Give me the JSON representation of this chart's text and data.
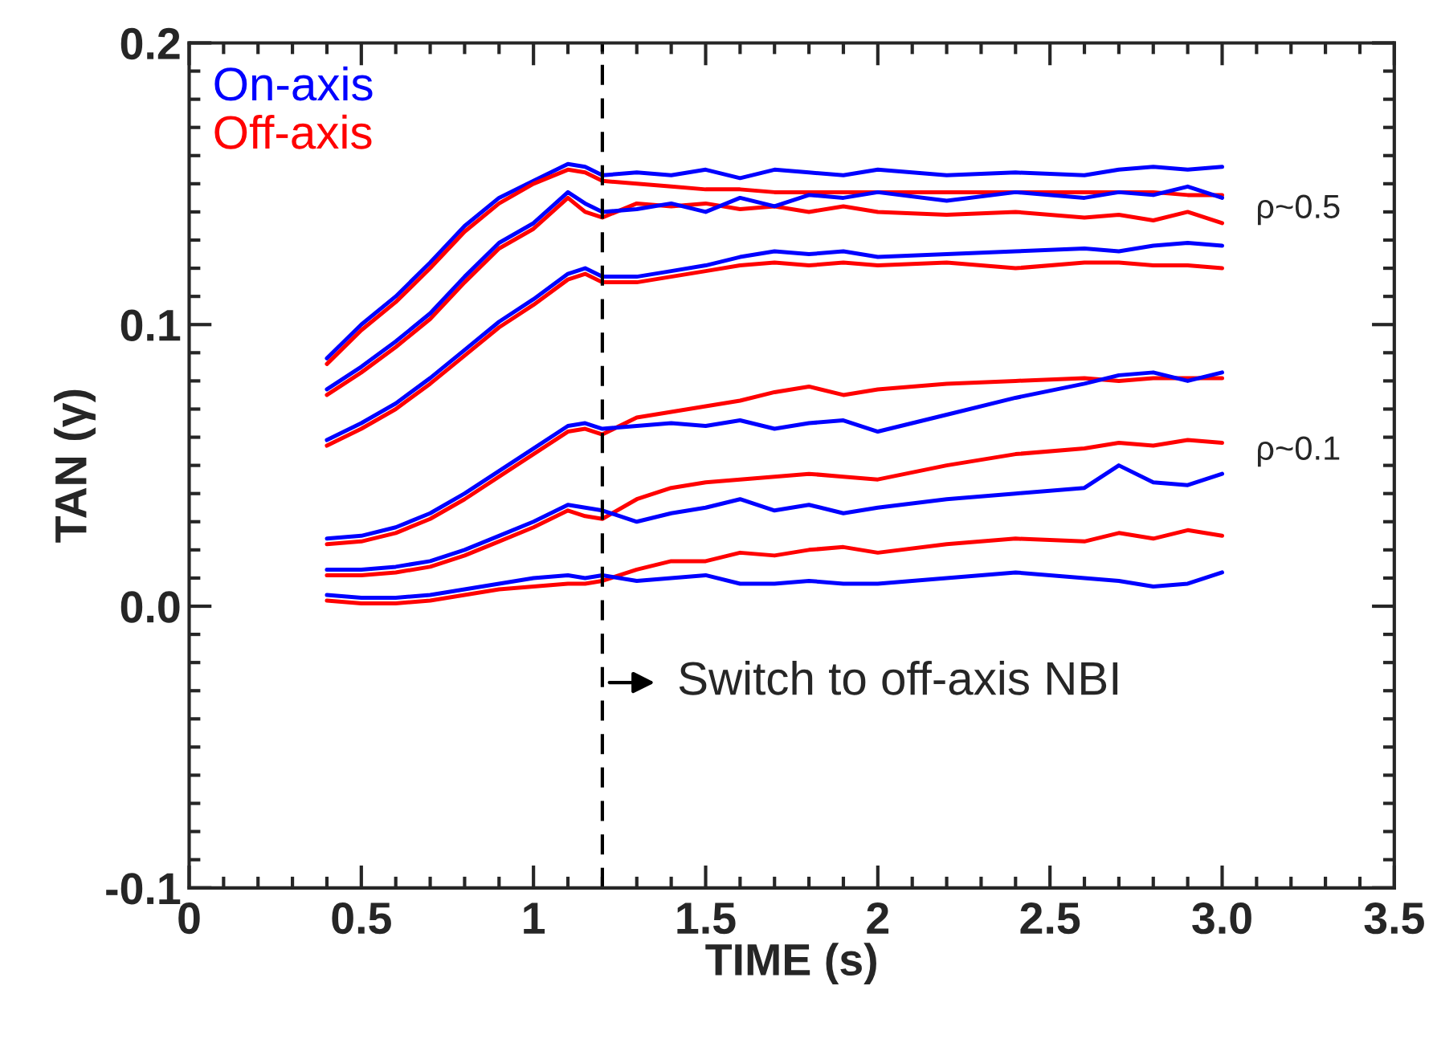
{
  "chart_data": {
    "type": "line",
    "xlabel": "TIME (s)",
    "ylabel": "TAN (γ)",
    "x": [
      0.4,
      0.5,
      0.6,
      0.7,
      0.8,
      0.9,
      1.0,
      1.1,
      1.15,
      1.2,
      1.3,
      1.4,
      1.5,
      1.6,
      1.7,
      1.8,
      1.9,
      2.0,
      2.2,
      2.4,
      2.6,
      2.7,
      2.8,
      2.9,
      3.0
    ],
    "series": [
      {
        "name": "On-axis",
        "color": "#0000ff",
        "values": [
          0.088,
          0.1,
          0.11,
          0.122,
          0.135,
          0.145,
          0.151,
          0.157,
          0.156,
          0.153,
          0.154,
          0.153,
          0.155,
          0.152,
          0.155,
          0.154,
          0.153,
          0.155,
          0.153,
          0.154,
          0.153,
          0.155,
          0.156,
          0.155,
          0.156
        ]
      },
      {
        "name": "Off-axis",
        "color": "#ff0000",
        "values": [
          0.086,
          0.098,
          0.108,
          0.12,
          0.133,
          0.143,
          0.15,
          0.155,
          0.154,
          0.151,
          0.15,
          0.149,
          0.148,
          0.148,
          0.147,
          0.147,
          0.147,
          0.147,
          0.147,
          0.147,
          0.147,
          0.147,
          0.147,
          0.146,
          0.146
        ]
      },
      {
        "color": "#ff0000",
        "values": [
          0.075,
          0.083,
          0.092,
          0.102,
          0.115,
          0.127,
          0.134,
          0.145,
          0.14,
          0.138,
          0.143,
          0.142,
          0.143,
          0.141,
          0.142,
          0.14,
          0.142,
          0.14,
          0.139,
          0.14,
          0.138,
          0.139,
          0.137,
          0.14,
          0.136
        ]
      },
      {
        "color": "#0000ff",
        "values": [
          0.077,
          0.085,
          0.094,
          0.104,
          0.117,
          0.129,
          0.136,
          0.147,
          0.143,
          0.14,
          0.141,
          0.143,
          0.14,
          0.145,
          0.142,
          0.146,
          0.145,
          0.147,
          0.144,
          0.147,
          0.145,
          0.147,
          0.146,
          0.149,
          0.145
        ]
      },
      {
        "color": "#ff0000",
        "values": [
          0.057,
          0.063,
          0.07,
          0.079,
          0.089,
          0.099,
          0.107,
          0.116,
          0.118,
          0.115,
          0.115,
          0.117,
          0.119,
          0.121,
          0.122,
          0.121,
          0.122,
          0.121,
          0.122,
          0.12,
          0.122,
          0.122,
          0.121,
          0.121,
          0.12
        ]
      },
      {
        "color": "#0000ff",
        "values": [
          0.059,
          0.065,
          0.072,
          0.081,
          0.091,
          0.101,
          0.109,
          0.118,
          0.12,
          0.117,
          0.117,
          0.119,
          0.121,
          0.124,
          0.126,
          0.125,
          0.126,
          0.124,
          0.125,
          0.126,
          0.127,
          0.126,
          0.128,
          0.129,
          0.128
        ]
      },
      {
        "color": "#ff0000",
        "values": [
          0.022,
          0.023,
          0.026,
          0.031,
          0.038,
          0.046,
          0.054,
          0.062,
          0.063,
          0.061,
          0.067,
          0.069,
          0.071,
          0.073,
          0.076,
          0.078,
          0.075,
          0.077,
          0.079,
          0.08,
          0.081,
          0.08,
          0.081,
          0.081,
          0.081
        ]
      },
      {
        "color": "#0000ff",
        "values": [
          0.024,
          0.025,
          0.028,
          0.033,
          0.04,
          0.048,
          0.056,
          0.064,
          0.065,
          0.063,
          0.064,
          0.065,
          0.064,
          0.066,
          0.063,
          0.065,
          0.066,
          0.062,
          0.068,
          0.074,
          0.079,
          0.082,
          0.083,
          0.08,
          0.083
        ]
      },
      {
        "color": "#ff0000",
        "values": [
          0.011,
          0.011,
          0.012,
          0.014,
          0.018,
          0.023,
          0.028,
          0.034,
          0.032,
          0.031,
          0.038,
          0.042,
          0.044,
          0.045,
          0.046,
          0.047,
          0.046,
          0.045,
          0.05,
          0.054,
          0.056,
          0.058,
          0.057,
          0.059,
          0.058
        ]
      },
      {
        "color": "#0000ff",
        "values": [
          0.013,
          0.013,
          0.014,
          0.016,
          0.02,
          0.025,
          0.03,
          0.036,
          0.035,
          0.034,
          0.03,
          0.033,
          0.035,
          0.038,
          0.034,
          0.036,
          0.033,
          0.035,
          0.038,
          0.04,
          0.042,
          0.05,
          0.044,
          0.043,
          0.047
        ]
      },
      {
        "color": "#ff0000",
        "values": [
          0.002,
          0.001,
          0.001,
          0.002,
          0.004,
          0.006,
          0.007,
          0.008,
          0.008,
          0.009,
          0.013,
          0.016,
          0.016,
          0.019,
          0.018,
          0.02,
          0.021,
          0.019,
          0.022,
          0.024,
          0.023,
          0.026,
          0.024,
          0.027,
          0.025
        ]
      },
      {
        "color": "#0000ff",
        "values": [
          0.004,
          0.003,
          0.003,
          0.004,
          0.006,
          0.008,
          0.01,
          0.011,
          0.01,
          0.011,
          0.009,
          0.01,
          0.011,
          0.008,
          0.008,
          0.009,
          0.008,
          0.008,
          0.01,
          0.012,
          0.01,
          0.009,
          0.007,
          0.008,
          0.012
        ]
      }
    ],
    "xlim": [
      0,
      3.5
    ],
    "ylim": [
      -0.1,
      0.2
    ],
    "xticks": [
      0,
      0.5,
      1,
      1.5,
      2,
      2.5,
      {
        "value": 3.0,
        "label": "3.0"
      },
      3.5
    ],
    "yticks": [
      -0.1,
      {
        "value": 0.0,
        "label": "0.0"
      },
      0.1,
      0.2
    ],
    "ref_lines": [
      {
        "axis": "x",
        "value": 1.2,
        "color": "#000000",
        "line_style": "dashed"
      }
    ],
    "annotations": [
      "ρ~0.5",
      "ρ~0.1",
      "Switch to off-axis NBI"
    ],
    "legend": "top left",
    "grid": false
  }
}
